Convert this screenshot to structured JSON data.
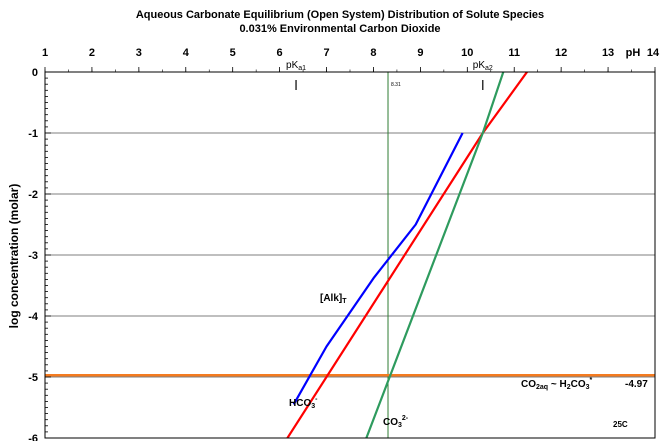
{
  "chart_data": {
    "type": "line",
    "title": "Aqueous Carbonate Equilibrium (Open System) Distribution of Solute Species",
    "subtitle": "0.031% Environmental Carbon Dioxide",
    "xlabel": "pH",
    "ylabel": "log concentration (molar)",
    "xlim": [
      1,
      14
    ],
    "ylim": [
      -6,
      0
    ],
    "x_ticks": [
      "1",
      "2",
      "3",
      "4",
      "5",
      "6",
      "7",
      "8",
      "9",
      "10",
      "11",
      "12",
      "13",
      "14"
    ],
    "y_ticks": [
      "0",
      "-1",
      "-2",
      "-3",
      "-4",
      "-5",
      "-6"
    ],
    "grid": true,
    "markers": [
      {
        "name": "pKa1",
        "label_main": "pK",
        "label_sub": "a1",
        "x": 6.35
      },
      {
        "name": "pKa2",
        "label_main": "pK",
        "label_sub": "a2",
        "x": 10.33
      }
    ],
    "vline": {
      "x": 8.31,
      "label": "8.31",
      "color": "#2e7d32"
    },
    "series": [
      {
        "name": "CO2aq",
        "color": "#f47b20",
        "points": [
          [
            1,
            -4.97
          ],
          [
            14,
            -4.97
          ]
        ]
      },
      {
        "name": "HCO3-",
        "color": "#ff0000",
        "points": [
          [
            6.0,
            -6.2
          ],
          [
            10.33,
            -1.0
          ],
          [
            11.3,
            0.03
          ]
        ]
      },
      {
        "name": "CO3 2-",
        "color": "#2e9b5e",
        "points": [
          [
            7.75,
            -6.2
          ],
          [
            10.33,
            -1.0
          ],
          [
            10.78,
            0.03
          ]
        ]
      },
      {
        "name": "[Alk]T",
        "color": "#0000ff",
        "points": [
          [
            6.3,
            -5.45
          ],
          [
            7.0,
            -4.5
          ],
          [
            8.0,
            -3.38
          ],
          [
            8.9,
            -2.5
          ],
          [
            9.9,
            -1.0
          ]
        ]
      }
    ],
    "annotations": {
      "alk": {
        "main": "[Alk]",
        "sub": "T",
        "color": "#0000ff"
      },
      "hco3": {
        "main": "HCO",
        "sub": "3",
        "sup": "-",
        "color": "#ff0000"
      },
      "co3": {
        "main": "CO",
        "sub": "3",
        "sup": "2-",
        "color": "#2e9b5e"
      },
      "co2": {
        "p1": "CO",
        "s1": "2aq",
        "p2": " ~ H",
        "s2": "2",
        "p3": "CO",
        "s3": "3",
        "sup": "*",
        "value": "-4.97",
        "color": "#f47b20"
      },
      "temp": "25C"
    }
  }
}
